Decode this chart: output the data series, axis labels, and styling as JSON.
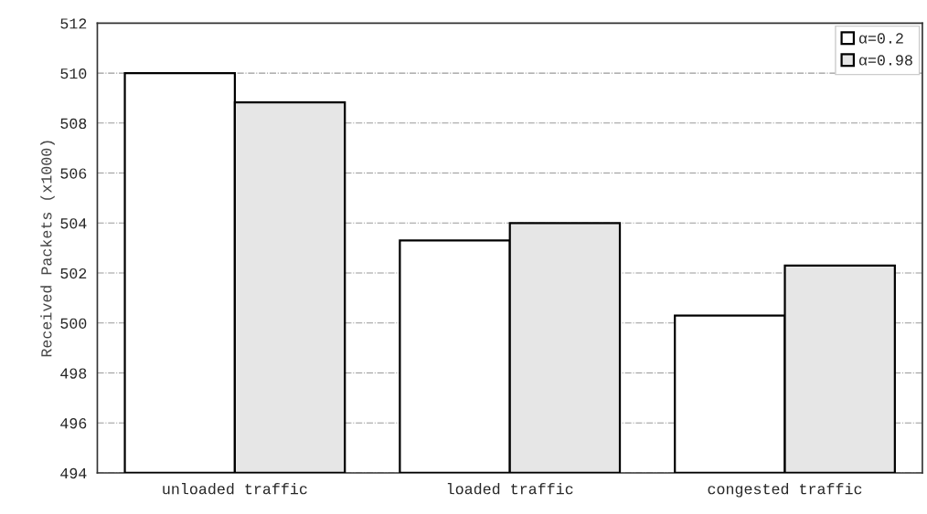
{
  "chart_data": {
    "type": "bar",
    "ylabel": "Received Packets (x1000)",
    "categories": [
      "unloaded traffic",
      "loaded traffic",
      "congested traffic"
    ],
    "series": [
      {
        "name": "α=0.2",
        "color": "#ffffff",
        "values": [
          510.0,
          503.3,
          500.3
        ]
      },
      {
        "name": "α=0.98",
        "color": "#e6e6e6",
        "values": [
          508.83,
          504.0,
          502.3
        ]
      }
    ],
    "ylim": [
      494,
      512
    ],
    "yticks": [
      494,
      496,
      498,
      500,
      502,
      504,
      506,
      508,
      510,
      512
    ],
    "grid": "y",
    "legend": "top right"
  }
}
